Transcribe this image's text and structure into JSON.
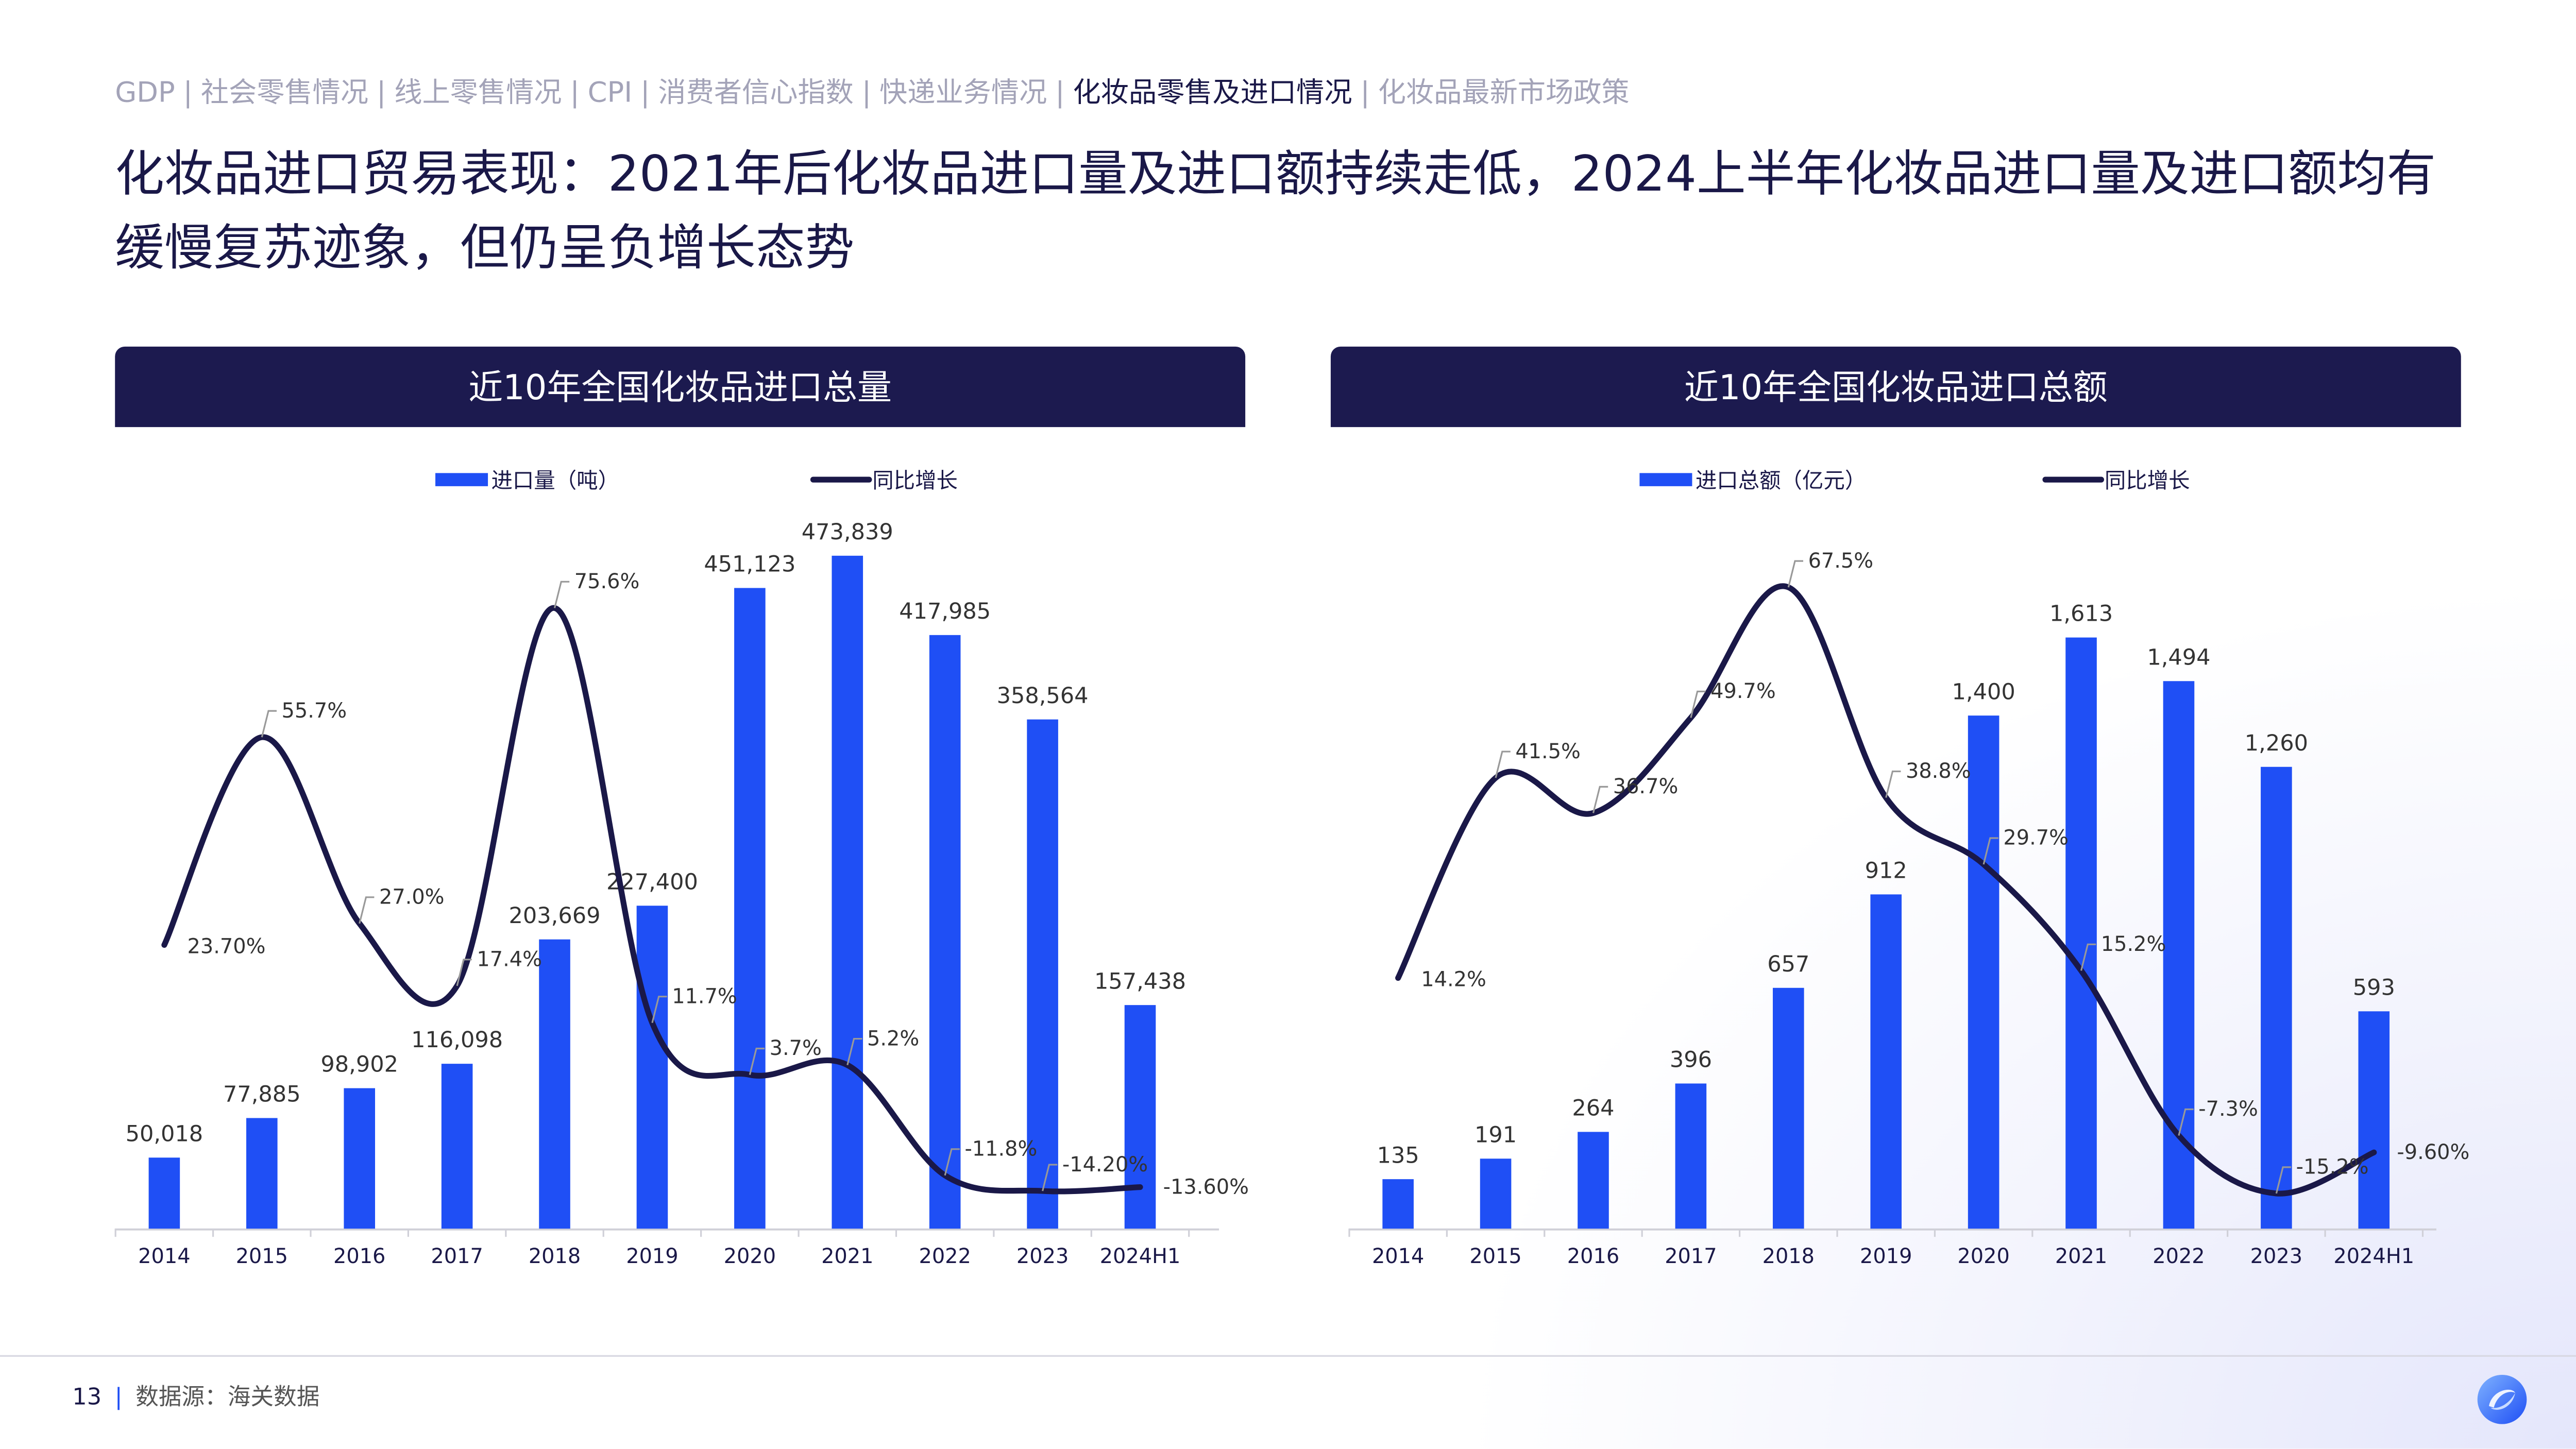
{
  "nav": {
    "items": [
      "GDP",
      "社会零售情况",
      "线上零售情况",
      "CPI",
      "消费者信心指数",
      "快递业务情况",
      "化妆品零售及进口情况",
      "化妆品最新市场政策"
    ],
    "active_index": 6
  },
  "title": "化妆品进口贸易表现：2021年后化妆品进口量及进口额持续走低，2024上半年化妆品进口量及进口额均有缓慢复苏迹象，但仍呈负增长态势",
  "footer": {
    "page": "13",
    "source": "数据源：海关数据"
  },
  "colors": {
    "bar": "#1f4ff5",
    "line": "#1a1848",
    "header": "#1c1a4f"
  },
  "chart_data": [
    {
      "type": "bar+line",
      "title": "近10年全国化妆品进口总量",
      "categories": [
        "2014",
        "2015",
        "2016",
        "2017",
        "2018",
        "2019",
        "2020",
        "2021",
        "2022",
        "2023",
        "2024H1"
      ],
      "series": [
        {
          "name": "进口量（吨）",
          "type": "bar",
          "values": [
            50018,
            77885,
            98902,
            116098,
            203669,
            227400,
            451123,
            473839,
            417985,
            358564,
            157438
          ],
          "labels": [
            "50,018",
            "77,885",
            "98,902",
            "116,098",
            "203,669",
            "227,400",
            "451,123",
            "473,839",
            "417,985",
            "358,564",
            "157,438"
          ]
        },
        {
          "name": "同比增长",
          "type": "line",
          "values": [
            23.7,
            55.7,
            27.0,
            17.4,
            75.6,
            11.7,
            3.7,
            5.2,
            -11.8,
            -14.2,
            -13.6
          ],
          "labels": [
            "23.70%",
            "55.7%",
            "27.0%",
            "17.4%",
            "75.6%",
            "11.7%",
            "3.7%",
            "5.2%",
            "-11.8%",
            "-14.20%",
            "-13.60%"
          ]
        }
      ],
      "ylim": [
        0,
        480000
      ],
      "y2lim": [
        -20,
        85
      ],
      "grid": false,
      "legend": "top-center"
    },
    {
      "type": "bar+line",
      "title": "近10年全国化妆品进口总额",
      "categories": [
        "2014",
        "2015",
        "2016",
        "2017",
        "2018",
        "2019",
        "2020",
        "2021",
        "2022",
        "2023",
        "2024H1"
      ],
      "series": [
        {
          "name": "进口总额（亿元）",
          "type": "bar",
          "values": [
            135,
            191,
            264,
            396,
            657,
            912,
            1400,
            1613,
            1494,
            1260,
            593
          ],
          "labels": [
            "135",
            "191",
            "264",
            "396",
            "657",
            "912",
            "1,400",
            "1,613",
            "1,494",
            "1,260",
            "593"
          ]
        },
        {
          "name": "同比增长",
          "type": "line",
          "values": [
            14.2,
            41.5,
            36.7,
            49.7,
            67.5,
            38.8,
            29.7,
            15.2,
            -7.3,
            -15.2,
            -9.6
          ],
          "labels": [
            "14.2%",
            "41.5%",
            "36.7%",
            "49.7%",
            "67.5%",
            "38.8%",
            "29.7%",
            "15.2%",
            "-7.3%",
            "-15.2%",
            "-9.60%"
          ]
        }
      ],
      "ylim": [
        0,
        1860
      ],
      "y2lim": [
        -20,
        73
      ],
      "grid": false,
      "legend": "top-center"
    }
  ]
}
